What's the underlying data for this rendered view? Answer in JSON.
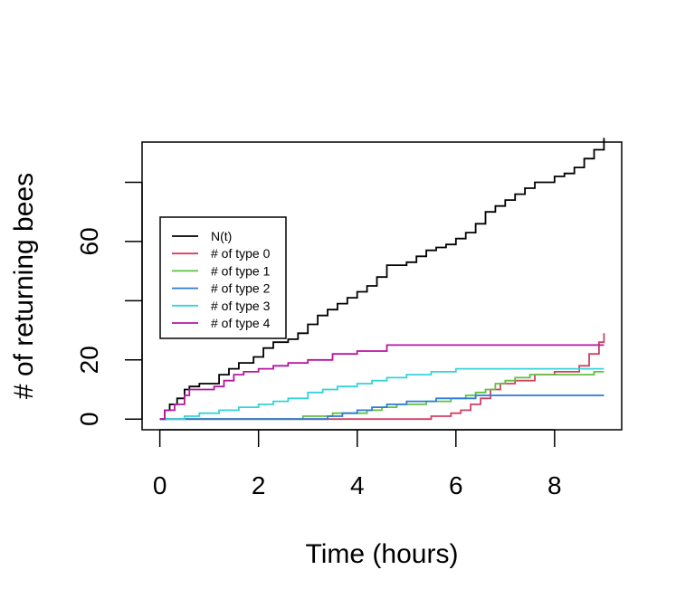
{
  "chart_data": {
    "type": "line",
    "title": "",
    "xlabel": "Time (hours)",
    "ylabel": "# of returning bees",
    "xlim": [
      -0.36,
      9.36
    ],
    "ylim": [
      -3.6,
      93.6
    ],
    "x_ticks": [
      0,
      2,
      4,
      6,
      8
    ],
    "x_tick_labels": [
      "0",
      "2",
      "4",
      "6",
      "8"
    ],
    "y_ticks": [
      0,
      20,
      40,
      60,
      80
    ],
    "y_tick_labels": [
      "0",
      "20",
      "",
      "60",
      ""
    ],
    "grid": false,
    "legend_position": "left",
    "series": [
      {
        "name": "N(t)",
        "color": "#000000",
        "x": [
          0,
          0.1,
          0.2,
          0.35,
          0.5,
          0.6,
          0.8,
          1.2,
          1.4,
          1.6,
          1.9,
          2.1,
          2.3,
          2.6,
          2.8,
          3.0,
          3.2,
          3.4,
          3.6,
          3.8,
          4.0,
          4.2,
          4.4,
          4.6,
          4.8,
          5.0,
          5.2,
          5.4,
          5.6,
          5.8,
          6.0,
          6.2,
          6.4,
          6.6,
          6.8,
          7.0,
          7.2,
          7.4,
          7.6,
          7.8,
          8.0,
          8.2,
          8.4,
          8.6,
          8.8,
          9.0
        ],
        "y": [
          0,
          3,
          5,
          7,
          10,
          11,
          12,
          15,
          17,
          19,
          21,
          24,
          26,
          27,
          29,
          32,
          35,
          37,
          39,
          41,
          43,
          45,
          48,
          52,
          52,
          53,
          55,
          57,
          58,
          59,
          61,
          63,
          66,
          70,
          72,
          74,
          76,
          78,
          80,
          80,
          82,
          83,
          85,
          88,
          91,
          95
        ]
      },
      {
        "name": "# of type 0",
        "color": "#d14062",
        "x": [
          0,
          3.4,
          4.5,
          5.0,
          5.5,
          5.9,
          6.1,
          6.3,
          6.5,
          6.7,
          6.9,
          7.2,
          7.6,
          8.0,
          8.5,
          8.7,
          8.9,
          9.0
        ],
        "y": [
          0,
          0,
          0,
          0,
          1,
          2,
          3,
          5,
          7,
          10,
          12,
          13,
          15,
          16,
          18,
          22,
          26,
          29
        ]
      },
      {
        "name": "# of type 1",
        "color": "#5ec141",
        "x": [
          0,
          2.9,
          3.5,
          4.2,
          4.5,
          4.8,
          5.4,
          5.9,
          6.2,
          6.4,
          6.6,
          6.8,
          7.0,
          7.2,
          7.5,
          8.0,
          8.8,
          9.0
        ],
        "y": [
          0,
          1,
          2,
          3,
          4,
          5,
          6,
          7,
          8,
          9,
          10,
          12,
          13,
          14,
          15,
          15,
          16,
          16
        ]
      },
      {
        "name": "# of type 2",
        "color": "#2c7bd6",
        "x": [
          0,
          3.0,
          3.4,
          3.7,
          4.0,
          4.3,
          4.6,
          5.0,
          5.6,
          6.0,
          6.4,
          6.8,
          7.5,
          8.0,
          9.0
        ],
        "y": [
          0,
          0,
          1,
          2,
          3,
          4,
          5,
          6,
          7,
          7,
          8,
          8,
          8,
          8,
          8
        ]
      },
      {
        "name": "# of type 3",
        "color": "#33d4d8",
        "x": [
          0,
          0.5,
          0.8,
          1.2,
          1.6,
          2.0,
          2.3,
          2.6,
          3.0,
          3.3,
          3.6,
          4.0,
          4.3,
          4.6,
          5.0,
          5.5,
          6.0,
          7.0,
          8.0,
          9.0
        ],
        "y": [
          0,
          1,
          2,
          3,
          4,
          5,
          6,
          7,
          9,
          10,
          11,
          12,
          13,
          14,
          15,
          16,
          17,
          17,
          17,
          17
        ]
      },
      {
        "name": "# of type 4",
        "color": "#b5169f",
        "x": [
          0,
          0.1,
          0.3,
          0.5,
          0.6,
          1.1,
          1.3,
          1.5,
          1.7,
          2.0,
          2.3,
          2.6,
          3.0,
          3.5,
          4.0,
          4.6,
          5.0,
          6.0,
          7.0,
          8.0,
          9.0
        ],
        "y": [
          0,
          3,
          5,
          8,
          10,
          11,
          13,
          15,
          16,
          17,
          18,
          19,
          20,
          22,
          23,
          25,
          25,
          25,
          25,
          25,
          25
        ]
      }
    ]
  }
}
